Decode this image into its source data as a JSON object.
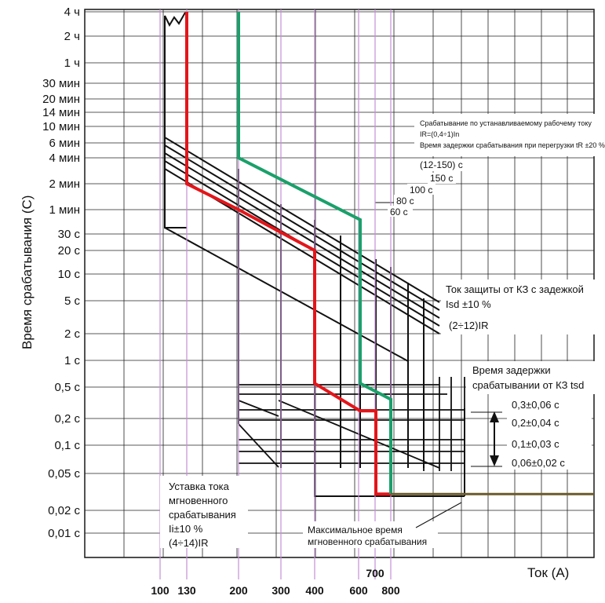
{
  "chart_data": {
    "type": "line",
    "ylabel": "Время срабатывания (С)",
    "xlabel": "Ток (А)",
    "y_scale": "log",
    "y_ticks": [
      {
        "label": "4 ч",
        "seconds": 14400
      },
      {
        "label": "2 ч",
        "seconds": 7200
      },
      {
        "label": "1 ч",
        "seconds": 3600
      },
      {
        "label": "30 мин",
        "seconds": 1800
      },
      {
        "label": "20 мин",
        "seconds": 1200
      },
      {
        "label": "14 мин",
        "seconds": 840
      },
      {
        "label": "10 мин",
        "seconds": 600
      },
      {
        "label": "6 мин",
        "seconds": 360
      },
      {
        "label": "4 мин",
        "seconds": 240
      },
      {
        "label": "2 мин",
        "seconds": 120
      },
      {
        "label": "1 мин",
        "seconds": 60
      },
      {
        "label": "30 с",
        "seconds": 30
      },
      {
        "label": "20 с",
        "seconds": 20
      },
      {
        "label": "10 с",
        "seconds": 10
      },
      {
        "label": "5 с",
        "seconds": 5
      },
      {
        "label": "2 с",
        "seconds": 2
      },
      {
        "label": "1 с",
        "seconds": 1
      },
      {
        "label": "0,5 с",
        "seconds": 0.5
      },
      {
        "label": "0,2 с",
        "seconds": 0.2
      },
      {
        "label": "0,1 с",
        "seconds": 0.1
      },
      {
        "label": "0,05 с",
        "seconds": 0.05
      },
      {
        "label": "0,02 с",
        "seconds": 0.02
      },
      {
        "label": "0,01 с",
        "seconds": 0.01
      }
    ],
    "x_ticks": [
      "100",
      "130",
      "200",
      "300",
      "400",
      "600",
      "700",
      "800"
    ],
    "series": [
      {
        "color": "#e3151a",
        "points": [
          [
            130,
            14400
          ],
          [
            130,
            300
          ],
          [
            130,
            120
          ],
          [
            200,
            60
          ],
          [
            400,
            20
          ],
          [
            400,
            0.55
          ],
          [
            600,
            0.25
          ],
          [
            700,
            0.25
          ],
          [
            700,
            0.03
          ],
          [
            800,
            0.03
          ]
        ]
      },
      {
        "color": "#1aa06a",
        "points": [
          [
            200,
            14400
          ],
          [
            200,
            240
          ],
          [
            600,
            45
          ],
          [
            600,
            0.55
          ],
          [
            800,
            0.35
          ],
          [
            800,
            0.03
          ]
        ]
      }
    ],
    "annotations": {
      "ir_block": {
        "line1": "Срабатывание по устанавливаемому рабочему току",
        "line2": "IR=(0,4÷1)In",
        "line3": "Время задержки срабатывания при перегрузки tR ±20 %"
      },
      "tr_values": [
        "(12-150) с",
        "150 с",
        "100 с",
        "80 с",
        "60 с"
      ],
      "isd_block": {
        "line1": "Ток защиты от КЗ с задежкой",
        "line2": "Isd ±10 %",
        "line3": "(2÷12)IR"
      },
      "tsd_block": {
        "line1": "Время задержки",
        "line2": "срабатывании от КЗ tsd",
        "values": [
          "0,3±0,06 с",
          "0,2±0,04 с",
          "0,1±0,03 с",
          "0,06±0,02 с"
        ]
      },
      "ii_block": {
        "line1": "Уставка тока",
        "line2": "мгновенного",
        "line3": "срабатывания",
        "line4": "Ii±10 %",
        "line5": "(4÷14)IR"
      },
      "max_block": {
        "line1": "Максимальное время",
        "line2": "мгновенного срабатывания"
      }
    }
  }
}
